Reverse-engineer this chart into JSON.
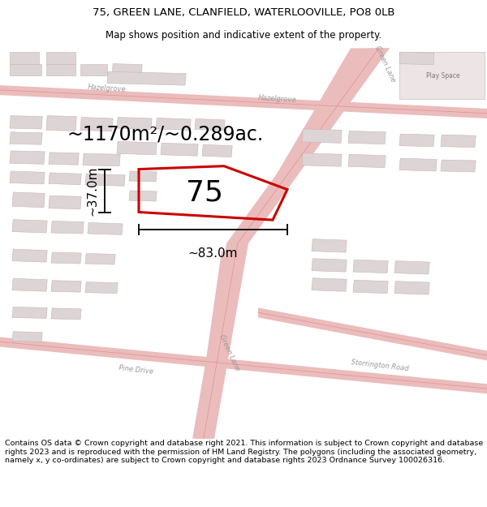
{
  "title_line1": "75, GREEN LANE, CLANFIELD, WATERLOOVILLE, PO8 0LB",
  "title_line2": "Map shows position and indicative extent of the property.",
  "footer_text": "Contains OS data © Crown copyright and database right 2021. This information is subject to Crown copyright and database rights 2023 and is reproduced with the permission of HM Land Registry. The polygons (including the associated geometry, namely x, y co-ordinates) are subject to Crown copyright and database rights 2023 Ordnance Survey 100026316.",
  "area_label": "~1170m²/~0.289ac.",
  "property_number": "75",
  "width_label": "~83.0m",
  "height_label": "~37.0m",
  "map_bg": "#f7f2f2",
  "road_color": "#ebbcbc",
  "building_fill": "#ddd5d5",
  "building_outline": "#c8b4b4",
  "property_outline": "#cc0000",
  "dim_line_color": "#111111",
  "title_fontsize": 9.5,
  "subtitle_fontsize": 8.5,
  "footer_fontsize": 6.8,
  "area_fontsize": 17,
  "number_fontsize": 26,
  "dim_label_fontsize": 11,
  "road_label_fontsize": 6,
  "road_label_color": "#999999",
  "play_space_color": "#ddcccc"
}
